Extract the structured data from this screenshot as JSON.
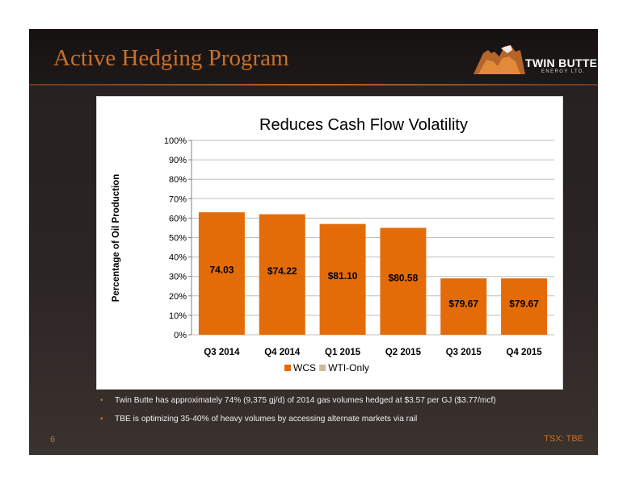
{
  "slide": {
    "title": "Active Hedging Program",
    "page_number": "6",
    "ticker_label": "TSX:",
    "ticker_symbol": "TBE",
    "logo": {
      "name": "TWIN BUTTE",
      "sub": "ENERGY LTD."
    }
  },
  "bullets": [
    "Twin Butte has approximately 74% (9,375 gj/d) of 2014 gas volumes hedged at $3.57 per GJ ($3.77/mcf)",
    "TBE is optimizing 35-40% of heavy volumes by accessing alternate markets via rail"
  ],
  "chart_data": {
    "type": "bar",
    "title": "Reduces Cash Flow Volatility",
    "xlabel": "",
    "ylabel": "Percentage of Oil Production",
    "categories": [
      "Q3 2014",
      "Q4 2014",
      "Q1 2015",
      "Q2 2015",
      "Q3 2015",
      "Q4 2015"
    ],
    "series": [
      {
        "name": "WCS",
        "color": "#e36c09",
        "values": [
          63,
          62,
          57,
          55,
          29,
          29
        ],
        "data_labels": [
          "74.03",
          "$74.22",
          "$81.10",
          "$80.58",
          "$79.67",
          "$79.67"
        ]
      },
      {
        "name": "WTI-Only",
        "color": "#c4bd97",
        "values": [
          0,
          0,
          0,
          0,
          0,
          0
        ]
      }
    ],
    "ylim": [
      0,
      100
    ],
    "yticks": [
      "0%",
      "10%",
      "20%",
      "30%",
      "40%",
      "50%",
      "60%",
      "70%",
      "80%",
      "90%",
      "100%"
    ],
    "grid": true,
    "legend": "bottom"
  }
}
